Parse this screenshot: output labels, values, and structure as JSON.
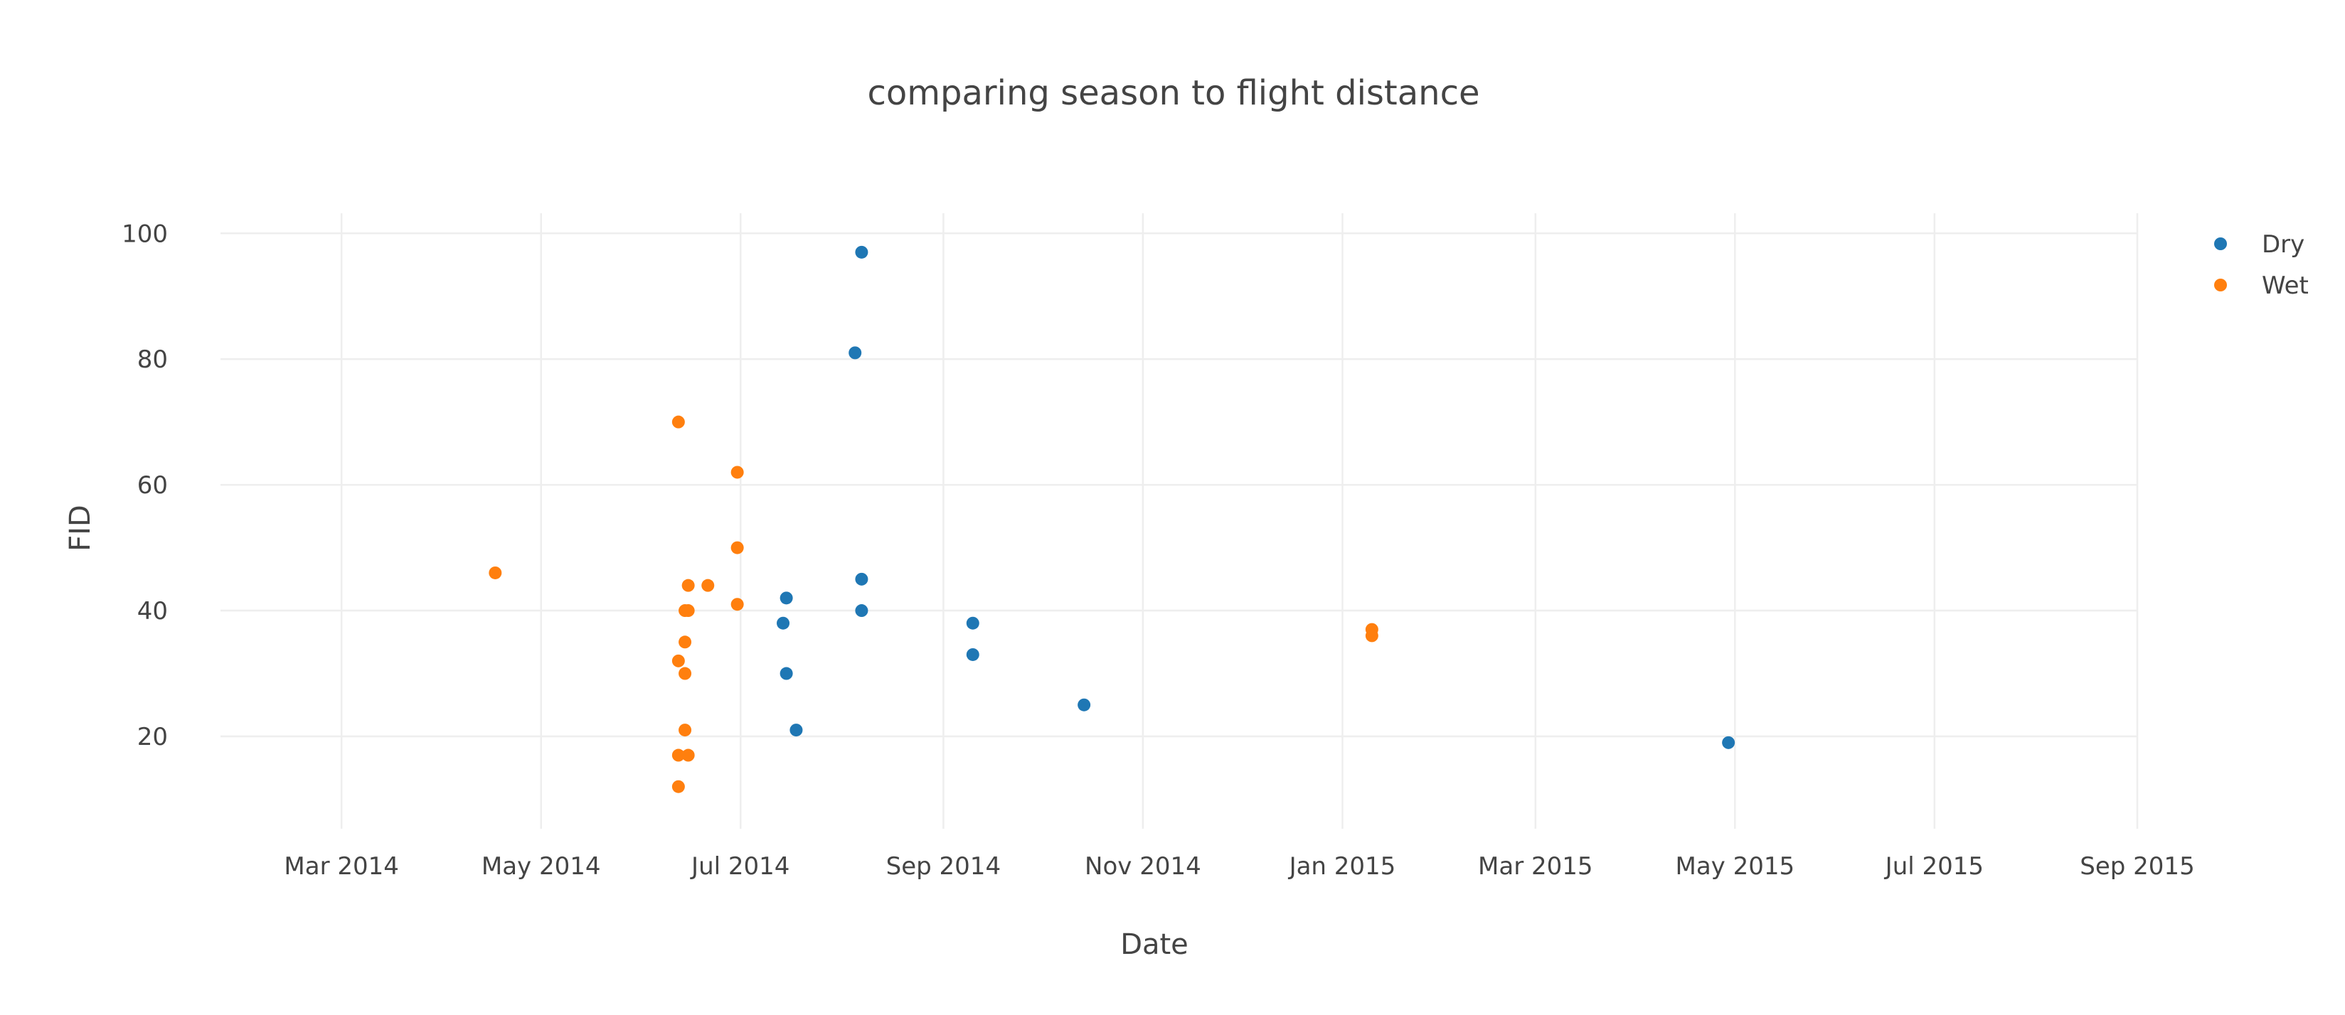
{
  "chart_data": {
    "type": "scatter",
    "title": "comparing season to flight distance",
    "xlabel": "Date",
    "ylabel": "FID",
    "xlim": [
      "2014-01-23",
      "2015-09-01"
    ],
    "ylim": [
      5.3,
      103.2
    ],
    "xticks": [
      {
        "value": "2014-03-01",
        "label": "Mar 2014"
      },
      {
        "value": "2014-05-01",
        "label": "May 2014"
      },
      {
        "value": "2014-07-01",
        "label": "Jul 2014"
      },
      {
        "value": "2014-09-01",
        "label": "Sep 2014"
      },
      {
        "value": "2014-11-01",
        "label": "Nov 2014"
      },
      {
        "value": "2015-01-01",
        "label": "Jan 2015"
      },
      {
        "value": "2015-03-01",
        "label": "Mar 2015"
      },
      {
        "value": "2015-05-01",
        "label": "May 2015"
      },
      {
        "value": "2015-07-01",
        "label": "Jul 2015"
      },
      {
        "value": "2015-09-01",
        "label": "Sep 2015"
      }
    ],
    "yticks": [
      20,
      40,
      60,
      80,
      100
    ],
    "grid": true,
    "legend_position": "top-right",
    "series": [
      {
        "name": "Dry",
        "color": "#1f77b4",
        "points": [
          {
            "x": "2014-08-07",
            "y": 97
          },
          {
            "x": "2014-08-05",
            "y": 81
          },
          {
            "x": "2014-08-07",
            "y": 45
          },
          {
            "x": "2014-08-07",
            "y": 40
          },
          {
            "x": "2014-07-15",
            "y": 42
          },
          {
            "x": "2014-07-14",
            "y": 38
          },
          {
            "x": "2014-07-15",
            "y": 30
          },
          {
            "x": "2014-07-18",
            "y": 21
          },
          {
            "x": "2014-09-10",
            "y": 38
          },
          {
            "x": "2014-09-10",
            "y": 33
          },
          {
            "x": "2014-10-14",
            "y": 25
          },
          {
            "x": "2015-04-29",
            "y": 19
          }
        ]
      },
      {
        "name": "Wet",
        "color": "#ff7f0e",
        "points": [
          {
            "x": "2014-04-17",
            "y": 46
          },
          {
            "x": "2014-06-12",
            "y": 70
          },
          {
            "x": "2014-06-30",
            "y": 62
          },
          {
            "x": "2014-06-30",
            "y": 50
          },
          {
            "x": "2014-06-30",
            "y": 41
          },
          {
            "x": "2014-06-15",
            "y": 44
          },
          {
            "x": "2014-06-21",
            "y": 44
          },
          {
            "x": "2014-06-14",
            "y": 40
          },
          {
            "x": "2014-06-15",
            "y": 40
          },
          {
            "x": "2014-06-14",
            "y": 35
          },
          {
            "x": "2014-06-12",
            "y": 32
          },
          {
            "x": "2014-06-14",
            "y": 30
          },
          {
            "x": "2014-06-14",
            "y": 21
          },
          {
            "x": "2014-06-12",
            "y": 17
          },
          {
            "x": "2014-06-15",
            "y": 17
          },
          {
            "x": "2014-06-12",
            "y": 12
          },
          {
            "x": "2015-01-10",
            "y": 37
          },
          {
            "x": "2015-01-10",
            "y": 36
          }
        ]
      }
    ]
  }
}
